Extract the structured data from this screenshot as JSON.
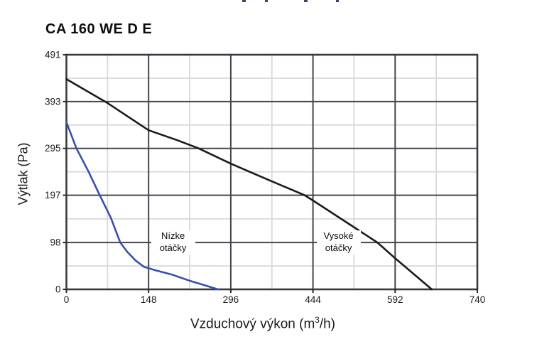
{
  "page": {
    "background": "#ffffff"
  },
  "clipped_top_fragments": {
    "color": "#3a4668",
    "items": [
      {
        "x": 341,
        "w": 5
      },
      {
        "x": 373,
        "w": 4
      },
      {
        "x": 428,
        "w": 5
      },
      {
        "x": 473,
        "w": 4
      }
    ]
  },
  "chart_data": {
    "type": "line",
    "title": "CA 160 WE D E",
    "xlabel": "Vzduchový výkon (m³/h)",
    "xlabel_base": "Vzduchový výkon (m",
    "xlabel_sup": "3",
    "xlabel_close": "/h)",
    "ylabel": "Výtlak (Pa)",
    "xlim": [
      0,
      740
    ],
    "ylim": [
      0,
      491
    ],
    "x_ticks": [
      0,
      148,
      296,
      444,
      592,
      740
    ],
    "y_ticks": [
      0,
      98,
      197,
      295,
      393,
      491
    ],
    "x_minor_gridlines": [
      74,
      222,
      370,
      518,
      666
    ],
    "y_minor_gridlines": [
      49,
      147.5,
      246,
      344,
      442
    ],
    "grid": {
      "major_color": "#46464c",
      "minor_color": "#d9d9d9",
      "border_color": "#3a3a40",
      "tick_color": "#2b2b2b"
    },
    "legend_position": "none",
    "series": [
      {
        "name": "Vysoké otáčky",
        "color": "#1b1b1b",
        "points": [
          [
            0,
            440
          ],
          [
            74,
            390
          ],
          [
            148,
            333
          ],
          [
            200,
            312
          ],
          [
            238,
            295
          ],
          [
            296,
            263
          ],
          [
            370,
            226
          ],
          [
            429,
            197
          ],
          [
            444,
            186
          ],
          [
            518,
            130
          ],
          [
            560,
            98
          ],
          [
            592,
            65
          ],
          [
            658,
            0
          ]
        ]
      },
      {
        "name": "Nízke otáčky",
        "color": "#3a51a8",
        "points": [
          [
            0,
            350
          ],
          [
            18,
            295
          ],
          [
            40,
            246
          ],
          [
            60,
            197
          ],
          [
            80,
            150
          ],
          [
            97,
            98
          ],
          [
            110,
            78
          ],
          [
            125,
            60
          ],
          [
            140,
            47
          ],
          [
            160,
            40
          ],
          [
            190,
            31
          ],
          [
            222,
            18
          ],
          [
            248,
            9
          ],
          [
            273,
            0
          ]
        ]
      }
    ],
    "annotations": [
      {
        "text": "Nízke otáčky",
        "x": 192,
        "y": 98
      },
      {
        "text": "Vysoké otáčky",
        "x": 490,
        "y": 98
      }
    ]
  }
}
